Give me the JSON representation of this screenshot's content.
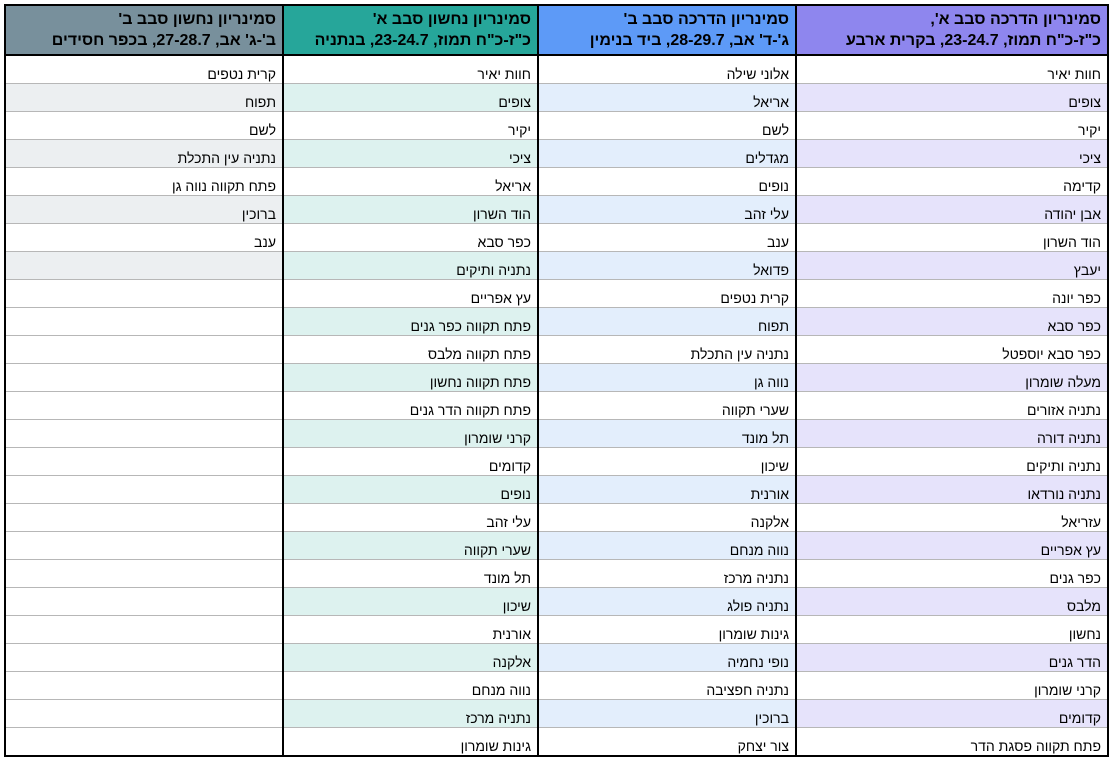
{
  "colors": {
    "col1_header": "#8e86ee",
    "col1_band": "#e6e3fb",
    "col2_header": "#5d9af7",
    "col2_band": "#e3eefc",
    "col3_header": "#26a69a",
    "col3_band": "#ddf2ef",
    "col4_header": "#78909c",
    "col4_band": "#eceff1"
  },
  "columns": [
    {
      "header_line1": "סמינריון הדרכה סבב א',",
      "header_line2": "כ\"ז-כ\"ח תמוז, 23-24.7, בקרית ארבע",
      "rows": [
        "חוות יאיר",
        "צופים",
        "יקיר",
        "ציכי",
        "קדימה",
        "אבן יהודה",
        "הוד השרון",
        "יעבץ",
        "כפר יונה",
        "כפר סבא",
        "כפר סבא יוספטל",
        "מעלה שומרון",
        "נתניה אזורים",
        "נתניה דורה",
        "נתניה ותיקים",
        "נתניה נורדאו",
        "עזריאל",
        "עץ אפריים",
        "כפר גנים",
        "מלבס",
        "נחשון",
        "הדר גנים",
        "קרני שומרון",
        "קדומים",
        "פתח תקווה פסגת הדר"
      ]
    },
    {
      "header_line1": "סמינריון הדרכה סבב ב'",
      "header_line2": "ג'-ד' אב, 28-29.7, ביד בנימין",
      "rows": [
        "אלוני שילה",
        "אריאל",
        "לשם",
        "מגדלים",
        "נופים",
        "עלי זהב",
        "ענב",
        "פדואל",
        "קרית נטפים",
        "תפוח",
        "נתניה עין התכלת",
        "נווה גן",
        "שערי תקווה",
        "תל מונד",
        "שיכון",
        "אורנית",
        "אלקנה",
        "נווה מנחם",
        "נתניה מרכז",
        "נתניה פולג",
        "גינות שומרון",
        "נופי נחמיה",
        "נתניה חפציבה",
        "ברוכין",
        "צור יצחק"
      ]
    },
    {
      "header_line1": "סמינריון נחשון סבב א'",
      "header_line2": "כ\"ז-כ\"ח תמוז, 23-24.7, בנתניה",
      "rows": [
        "חוות יאיר",
        "צופים",
        "יקיר",
        "ציכי",
        "אריאל",
        "הוד השרון",
        "כפר סבא",
        "נתניה ותיקים",
        "עץ אפריים",
        "פתח תקווה כפר גנים",
        "פתח תקווה מלבס",
        "פתח תקווה נחשון",
        "פתח תקווה הדר גנים",
        "קרני שומרון",
        "קדומים",
        "נופים",
        "עלי זהב",
        "שערי תקווה",
        "תל מונד",
        "שיכון",
        "אורנית",
        "אלקנה",
        "נווה מנחם",
        "נתניה מרכז",
        "גינות שומרון"
      ]
    },
    {
      "header_line1": "סמינריון נחשון סבב ב'",
      "header_line2": "ב'-ג' אב, 27-28.7, בכפר חסידים",
      "rows": [
        "קרית נטפים",
        "תפוח",
        "לשם",
        "נתניה עין התכלת",
        "פתח תקווה נווה גן",
        "ברוכין",
        "ענב",
        "",
        "",
        "",
        "",
        "",
        "",
        "",
        "",
        "",
        "",
        "",
        "",
        "",
        "",
        "",
        "",
        "",
        ""
      ]
    }
  ]
}
